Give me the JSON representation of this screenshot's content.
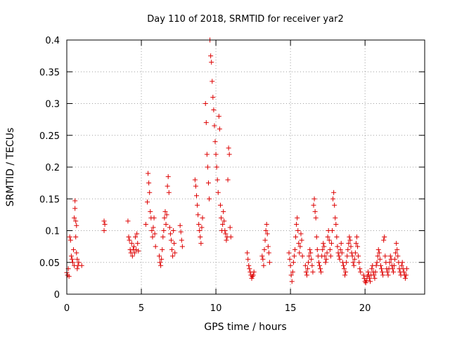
{
  "chart_data": {
    "type": "scatter",
    "title": "Day 110 of 2018, SRMTID for receiver yar2",
    "xlabel": "GPS time / hours",
    "ylabel": "SRMTID / TECUs",
    "xlim": [
      0,
      24
    ],
    "ylim": [
      0,
      0.4
    ],
    "x_ticks": [
      0,
      5,
      10,
      15,
      20
    ],
    "x_tick_labels": [
      "0",
      "5",
      "10",
      "15",
      "20"
    ],
    "y_ticks": [
      0,
      0.05,
      0.1,
      0.15,
      0.2,
      0.25,
      0.3,
      0.35,
      0.4
    ],
    "y_tick_labels": [
      "0",
      "0.05",
      "0.1",
      "0.15",
      "0.2",
      "0.25",
      "0.3",
      "0.35",
      "0.4"
    ],
    "grid": true,
    "marker": "+",
    "series": [
      {
        "name": "SRMTID",
        "color": "#dd0000",
        "points": [
          [
            0.0,
            0.034
          ],
          [
            0.05,
            0.03
          ],
          [
            0.1,
            0.04
          ],
          [
            0.15,
            0.028
          ],
          [
            0.2,
            0.09
          ],
          [
            0.25,
            0.085
          ],
          [
            0.3,
            0.06
          ],
          [
            0.35,
            0.055
          ],
          [
            0.4,
            0.05
          ],
          [
            0.45,
            0.07
          ],
          [
            0.5,
            0.045
          ],
          [
            0.5,
            0.12
          ],
          [
            0.55,
            0.147
          ],
          [
            0.55,
            0.135
          ],
          [
            0.6,
            0.115
          ],
          [
            0.6,
            0.09
          ],
          [
            0.65,
            0.108
          ],
          [
            0.65,
            0.065
          ],
          [
            0.7,
            0.055
          ],
          [
            0.7,
            0.04
          ],
          [
            0.75,
            0.045
          ],
          [
            0.8,
            0.05
          ],
          [
            1.0,
            0.045
          ],
          [
            2.5,
            0.115
          ],
          [
            2.5,
            0.1
          ],
          [
            2.55,
            0.11
          ],
          [
            4.1,
            0.115
          ],
          [
            4.15,
            0.09
          ],
          [
            4.2,
            0.085
          ],
          [
            4.25,
            0.07
          ],
          [
            4.3,
            0.065
          ],
          [
            4.35,
            0.08
          ],
          [
            4.4,
            0.06
          ],
          [
            4.45,
            0.07
          ],
          [
            4.5,
            0.075
          ],
          [
            4.55,
            0.065
          ],
          [
            4.6,
            0.09
          ],
          [
            4.65,
            0.07
          ],
          [
            4.7,
            0.095
          ],
          [
            4.75,
            0.08
          ],
          [
            4.8,
            0.068
          ],
          [
            5.3,
            0.11
          ],
          [
            5.4,
            0.145
          ],
          [
            5.45,
            0.19
          ],
          [
            5.5,
            0.175
          ],
          [
            5.55,
            0.16
          ],
          [
            5.6,
            0.13
          ],
          [
            5.65,
            0.12
          ],
          [
            5.7,
            0.1
          ],
          [
            5.75,
            0.09
          ],
          [
            5.8,
            0.105
          ],
          [
            5.85,
            0.12
          ],
          [
            5.9,
            0.095
          ],
          [
            5.95,
            0.075
          ],
          [
            6.2,
            0.06
          ],
          [
            6.25,
            0.05
          ],
          [
            6.3,
            0.045
          ],
          [
            6.35,
            0.055
          ],
          [
            6.4,
            0.07
          ],
          [
            6.45,
            0.09
          ],
          [
            6.5,
            0.1
          ],
          [
            6.55,
            0.12
          ],
          [
            6.6,
            0.13
          ],
          [
            6.65,
            0.11
          ],
          [
            6.7,
            0.125
          ],
          [
            6.75,
            0.17
          ],
          [
            6.8,
            0.185
          ],
          [
            6.85,
            0.16
          ],
          [
            6.9,
            0.105
          ],
          [
            6.95,
            0.095
          ],
          [
            7.0,
            0.085
          ],
          [
            7.05,
            0.07
          ],
          [
            7.1,
            0.06
          ],
          [
            7.15,
            0.1
          ],
          [
            7.2,
            0.08
          ],
          [
            7.25,
            0.065
          ],
          [
            7.6,
            0.108
          ],
          [
            7.65,
            0.098
          ],
          [
            7.7,
            0.085
          ],
          [
            7.75,
            0.075
          ],
          [
            8.6,
            0.18
          ],
          [
            8.65,
            0.17
          ],
          [
            8.7,
            0.155
          ],
          [
            8.75,
            0.14
          ],
          [
            8.8,
            0.125
          ],
          [
            8.85,
            0.11
          ],
          [
            8.9,
            0.1
          ],
          [
            8.95,
            0.09
          ],
          [
            9.0,
            0.08
          ],
          [
            9.05,
            0.105
          ],
          [
            9.1,
            0.12
          ],
          [
            9.3,
            0.3
          ],
          [
            9.35,
            0.27
          ],
          [
            9.4,
            0.22
          ],
          [
            9.45,
            0.2
          ],
          [
            9.5,
            0.175
          ],
          [
            9.55,
            0.15
          ],
          [
            9.6,
            0.4
          ],
          [
            9.65,
            0.375
          ],
          [
            9.7,
            0.365
          ],
          [
            9.75,
            0.335
          ],
          [
            9.8,
            0.31
          ],
          [
            9.85,
            0.29
          ],
          [
            9.9,
            0.265
          ],
          [
            9.95,
            0.24
          ],
          [
            10.0,
            0.22
          ],
          [
            10.05,
            0.2
          ],
          [
            10.1,
            0.18
          ],
          [
            10.15,
            0.16
          ],
          [
            10.2,
            0.28
          ],
          [
            10.25,
            0.26
          ],
          [
            10.3,
            0.14
          ],
          [
            10.35,
            0.12
          ],
          [
            10.4,
            0.1
          ],
          [
            10.45,
            0.11
          ],
          [
            10.5,
            0.13
          ],
          [
            10.55,
            0.115
          ],
          [
            10.6,
            0.1
          ],
          [
            10.65,
            0.095
          ],
          [
            10.7,
            0.085
          ],
          [
            10.75,
            0.09
          ],
          [
            10.8,
            0.18
          ],
          [
            10.85,
            0.23
          ],
          [
            10.9,
            0.22
          ],
          [
            10.95,
            0.105
          ],
          [
            11.0,
            0.09
          ],
          [
            12.1,
            0.065
          ],
          [
            12.15,
            0.055
          ],
          [
            12.2,
            0.045
          ],
          [
            12.25,
            0.04
          ],
          [
            12.3,
            0.035
          ],
          [
            12.35,
            0.03
          ],
          [
            12.4,
            0.025
          ],
          [
            12.45,
            0.028
          ],
          [
            12.5,
            0.03
          ],
          [
            12.55,
            0.035
          ],
          [
            13.1,
            0.06
          ],
          [
            13.15,
            0.055
          ],
          [
            13.2,
            0.045
          ],
          [
            13.25,
            0.07
          ],
          [
            13.3,
            0.085
          ],
          [
            13.35,
            0.1
          ],
          [
            13.4,
            0.11
          ],
          [
            13.45,
            0.095
          ],
          [
            13.5,
            0.075
          ],
          [
            13.55,
            0.065
          ],
          [
            13.6,
            0.05
          ],
          [
            14.9,
            0.065
          ],
          [
            14.95,
            0.055
          ],
          [
            15.0,
            0.045
          ],
          [
            15.05,
            0.03
          ],
          [
            15.1,
            0.02
          ],
          [
            15.15,
            0.035
          ],
          [
            15.2,
            0.05
          ],
          [
            15.25,
            0.06
          ],
          [
            15.3,
            0.07
          ],
          [
            15.35,
            0.09
          ],
          [
            15.4,
            0.11
          ],
          [
            15.45,
            0.12
          ],
          [
            15.5,
            0.1
          ],
          [
            15.55,
            0.08
          ],
          [
            15.6,
            0.065
          ],
          [
            15.65,
            0.075
          ],
          [
            15.7,
            0.095
          ],
          [
            15.75,
            0.085
          ],
          [
            15.8,
            0.06
          ],
          [
            16.0,
            0.045
          ],
          [
            16.05,
            0.035
          ],
          [
            16.1,
            0.03
          ],
          [
            16.15,
            0.04
          ],
          [
            16.2,
            0.05
          ],
          [
            16.25,
            0.06
          ],
          [
            16.3,
            0.07
          ],
          [
            16.35,
            0.065
          ],
          [
            16.4,
            0.055
          ],
          [
            16.45,
            0.045
          ],
          [
            16.5,
            0.035
          ],
          [
            16.55,
            0.14
          ],
          [
            16.6,
            0.15
          ],
          [
            16.65,
            0.13
          ],
          [
            16.7,
            0.12
          ],
          [
            16.75,
            0.09
          ],
          [
            16.8,
            0.07
          ],
          [
            16.85,
            0.06
          ],
          [
            16.9,
            0.05
          ],
          [
            16.95,
            0.045
          ],
          [
            17.0,
            0.04
          ],
          [
            17.05,
            0.035
          ],
          [
            17.1,
            0.06
          ],
          [
            17.15,
            0.07
          ],
          [
            17.2,
            0.08
          ],
          [
            17.25,
            0.075
          ],
          [
            17.3,
            0.06
          ],
          [
            17.35,
            0.05
          ],
          [
            17.4,
            0.055
          ],
          [
            17.45,
            0.065
          ],
          [
            17.5,
            0.09
          ],
          [
            17.55,
            0.1
          ],
          [
            17.6,
            0.085
          ],
          [
            17.65,
            0.07
          ],
          [
            17.7,
            0.06
          ],
          [
            17.75,
            0.08
          ],
          [
            17.8,
            0.1
          ],
          [
            17.85,
            0.15
          ],
          [
            17.9,
            0.16
          ],
          [
            17.95,
            0.14
          ],
          [
            18.0,
            0.12
          ],
          [
            18.05,
            0.11
          ],
          [
            18.1,
            0.09
          ],
          [
            18.15,
            0.075
          ],
          [
            18.2,
            0.065
          ],
          [
            18.25,
            0.06
          ],
          [
            18.3,
            0.055
          ],
          [
            18.35,
            0.07
          ],
          [
            18.4,
            0.08
          ],
          [
            18.45,
            0.065
          ],
          [
            18.5,
            0.05
          ],
          [
            18.55,
            0.045
          ],
          [
            18.6,
            0.04
          ],
          [
            18.65,
            0.03
          ],
          [
            18.7,
            0.035
          ],
          [
            18.75,
            0.05
          ],
          [
            18.8,
            0.06
          ],
          [
            18.85,
            0.07
          ],
          [
            18.9,
            0.08
          ],
          [
            18.95,
            0.09
          ],
          [
            19.0,
            0.085
          ],
          [
            19.05,
            0.075
          ],
          [
            19.1,
            0.065
          ],
          [
            19.15,
            0.06
          ],
          [
            19.2,
            0.05
          ],
          [
            19.25,
            0.045
          ],
          [
            19.3,
            0.055
          ],
          [
            19.35,
            0.065
          ],
          [
            19.4,
            0.08
          ],
          [
            19.45,
            0.09
          ],
          [
            19.5,
            0.075
          ],
          [
            19.55,
            0.06
          ],
          [
            19.6,
            0.05
          ],
          [
            19.65,
            0.04
          ],
          [
            19.7,
            0.035
          ],
          [
            19.9,
            0.03
          ],
          [
            19.95,
            0.025
          ],
          [
            20.0,
            0.02
          ],
          [
            20.05,
            0.018
          ],
          [
            20.1,
            0.022
          ],
          [
            20.15,
            0.028
          ],
          [
            20.2,
            0.035
          ],
          [
            20.25,
            0.03
          ],
          [
            20.3,
            0.025
          ],
          [
            20.35,
            0.02
          ],
          [
            20.4,
            0.03
          ],
          [
            20.45,
            0.04
          ],
          [
            20.5,
            0.045
          ],
          [
            20.55,
            0.035
          ],
          [
            20.6,
            0.03
          ],
          [
            20.65,
            0.025
          ],
          [
            20.7,
            0.035
          ],
          [
            20.75,
            0.045
          ],
          [
            20.8,
            0.05
          ],
          [
            20.85,
            0.06
          ],
          [
            20.9,
            0.07
          ],
          [
            20.95,
            0.065
          ],
          [
            21.0,
            0.055
          ],
          [
            21.05,
            0.045
          ],
          [
            21.1,
            0.04
          ],
          [
            21.15,
            0.035
          ],
          [
            21.2,
            0.03
          ],
          [
            21.25,
            0.085
          ],
          [
            21.3,
            0.09
          ],
          [
            21.35,
            0.06
          ],
          [
            21.4,
            0.05
          ],
          [
            21.45,
            0.04
          ],
          [
            21.5,
            0.035
          ],
          [
            21.55,
            0.03
          ],
          [
            21.6,
            0.04
          ],
          [
            21.65,
            0.05
          ],
          [
            21.7,
            0.06
          ],
          [
            21.75,
            0.055
          ],
          [
            21.8,
            0.045
          ],
          [
            21.85,
            0.04
          ],
          [
            21.9,
            0.035
          ],
          [
            21.95,
            0.045
          ],
          [
            22.0,
            0.055
          ],
          [
            22.05,
            0.065
          ],
          [
            22.1,
            0.08
          ],
          [
            22.15,
            0.07
          ],
          [
            22.2,
            0.06
          ],
          [
            22.25,
            0.05
          ],
          [
            22.3,
            0.04
          ],
          [
            22.35,
            0.035
          ],
          [
            22.4,
            0.03
          ],
          [
            22.45,
            0.045
          ],
          [
            22.5,
            0.05
          ],
          [
            22.55,
            0.04
          ],
          [
            22.6,
            0.035
          ],
          [
            22.65,
            0.03
          ],
          [
            22.7,
            0.025
          ],
          [
            22.75,
            0.03
          ],
          [
            22.8,
            0.04
          ]
        ]
      }
    ]
  }
}
